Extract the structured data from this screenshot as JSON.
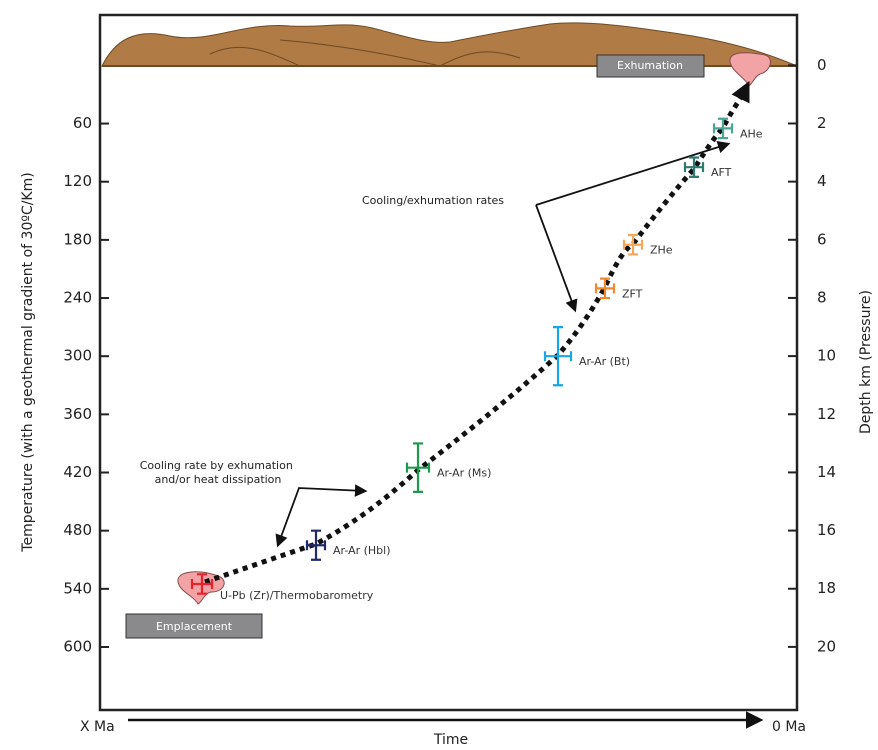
{
  "chart_data": {
    "type": "scatter",
    "y_label": "Temperature (with a geothermal gradient of  30ºC/Km)",
    "y2_label": "Depth km (Pressure)",
    "x_label": "Time",
    "x_start_label": "X Ma",
    "x_end_label": "0 Ma",
    "ylim": [
      -52,
      665
    ],
    "yticks": [
      60,
      120,
      180,
      240,
      300,
      360,
      420,
      480,
      540,
      600
    ],
    "y2lim": [
      -1.73,
      22.17
    ],
    "y2ticks": [
      0,
      2,
      4,
      6,
      8,
      10,
      12,
      14,
      16,
      18,
      20
    ],
    "inverted": true,
    "categories": [
      "U-Pb (Zr)/Thermobarometry",
      "Ar-Ar (Hbl)",
      "Ar-Ar (Ms)",
      "Ar-Ar (Bt)",
      "ZFT",
      "ZHe",
      "AFT",
      "AHe"
    ],
    "values": [
      535,
      495,
      415,
      300,
      230,
      185,
      105,
      65
    ],
    "errors": [
      10,
      15,
      25,
      30,
      10,
      10,
      10,
      10
    ],
    "colors": [
      "#e8212b",
      "#1f2a6b",
      "#1a9a4a",
      "#1aa6e0",
      "#f0892b",
      "#f5a85a",
      "#2e7a6e",
      "#4aa596"
    ],
    "annotations": {
      "exhumation": "Exhumation",
      "emplacement": "Emplacement",
      "cooling_exhumation": "Cooling/exhumation rates",
      "cooling_rate": [
        "Cooling rate by exhumation",
        "and/or heat dissipation"
      ]
    }
  }
}
